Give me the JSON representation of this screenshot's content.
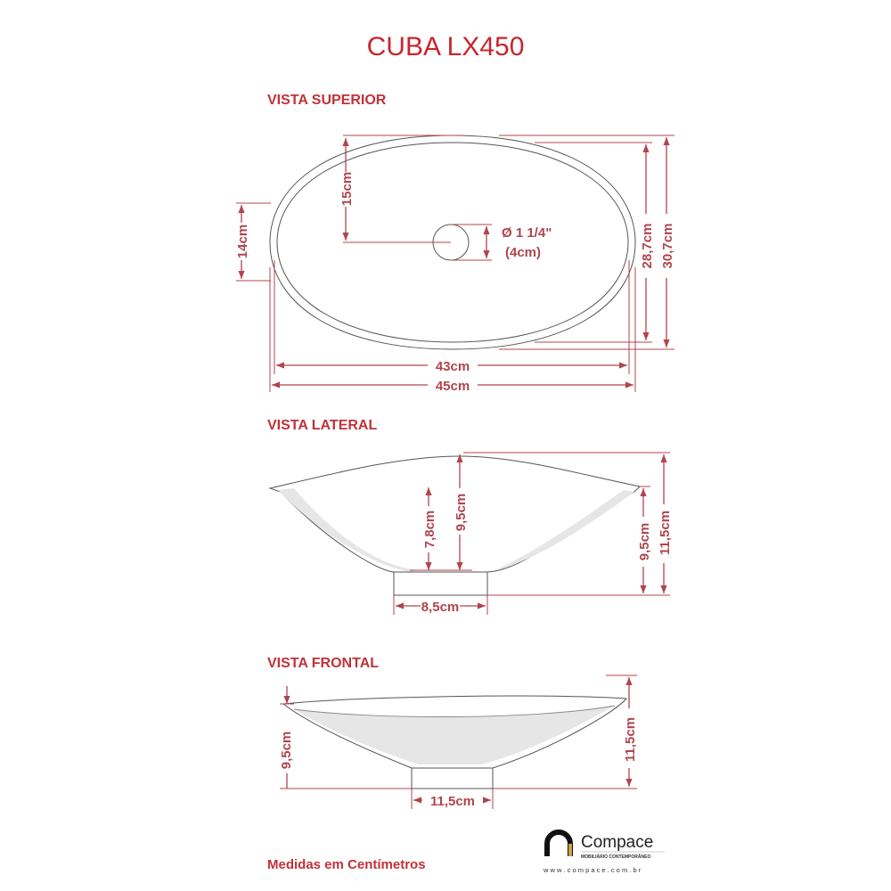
{
  "title": "CUBA LX450",
  "colors": {
    "title": "#c8262e",
    "dimension": "#b0454d"
  },
  "views": {
    "top": {
      "label": "VISTA SUPERIOR",
      "dims": {
        "drain_offset": "15cm",
        "drain_diameter": "Ø 1 1/4\"",
        "drain_diameter_cm": "(4cm)",
        "inner_depth": "28,7cm",
        "outer_depth": "30,7cm",
        "side_height": "14cm",
        "inner_width": "43cm",
        "outer_width": "45cm"
      }
    },
    "lateral": {
      "label": "VISTA LATERAL",
      "dims": {
        "inner_height": "7,8cm",
        "center_height": "9,5cm",
        "edge_height": "9,5cm",
        "total_height": "11,5cm",
        "base_width": "8,5cm"
      }
    },
    "frontal": {
      "label": "VISTA FRONTAL",
      "dims": {
        "left_height": "9,5cm",
        "right_height": "11,5cm",
        "base_width": "11,5cm"
      }
    }
  },
  "footer": {
    "note": "Medidas em Centímetros"
  },
  "logo": {
    "name": "Compace",
    "tagline": "MOBILIÁRIO CONTEMPORÂNEO",
    "url": "w w w . c o m p a c e . c o m . b r"
  }
}
